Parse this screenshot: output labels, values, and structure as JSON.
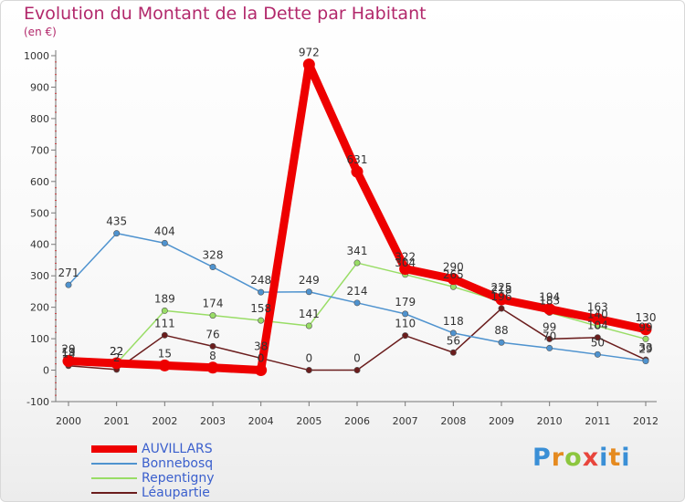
{
  "chart_data": {
    "type": "line",
    "title": "Evolution du Montant de la Dette par Habitant",
    "subtitle": "(en €)",
    "xlabel": "",
    "ylabel": "",
    "ylim": [
      -100,
      1000
    ],
    "yticks": [
      -100,
      0,
      100,
      200,
      300,
      400,
      500,
      600,
      700,
      800,
      900,
      1000
    ],
    "categories": [
      "2000",
      "2001",
      "2002",
      "2003",
      "2004",
      "2005",
      "2006",
      "2007",
      "2008",
      "2009",
      "2010",
      "2011",
      "2012"
    ],
    "grid": false,
    "legend_position": "bottom-left",
    "series": [
      {
        "name": "AUVILLARS",
        "color": "#ee0000",
        "values": [
          29,
          22,
          15,
          8,
          0,
          972,
          631,
          322,
          290,
          225,
          194,
          163,
          130
        ]
      },
      {
        "name": "Bonnebosq",
        "color": "#4f93cf",
        "values": [
          271,
          435,
          404,
          328,
          248,
          249,
          214,
          179,
          118,
          88,
          70,
          50,
          29
        ]
      },
      {
        "name": "Repentigny",
        "color": "#99dd66",
        "values": [
          19,
          22,
          189,
          174,
          158,
          141,
          341,
          304,
          265,
          218,
          183,
          140,
          99
        ]
      },
      {
        "name": "Léaupartie",
        "color": "#6b1d1d",
        "values": [
          14,
          2,
          111,
          76,
          38,
          0,
          0,
          110,
          56,
          196,
          99,
          104,
          33
        ]
      }
    ]
  },
  "logo": {
    "p": "P",
    "r": "r",
    "o": "o",
    "x": "x",
    "i": "i",
    "t": "t",
    "i2": "i"
  }
}
